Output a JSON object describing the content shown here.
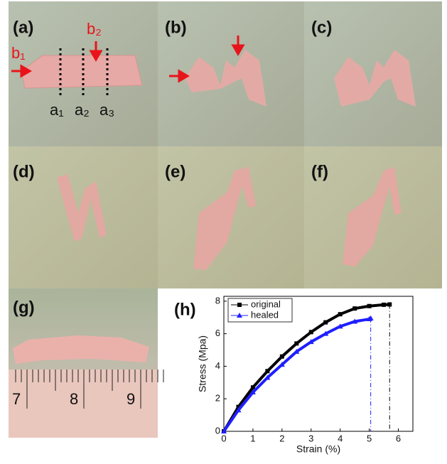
{
  "photos": [
    {
      "label": "(a)",
      "annotations": [
        "b₁",
        "b₂",
        "a₁",
        "a₂",
        "a₃"
      ]
    },
    {
      "label": "(b)"
    },
    {
      "label": "(c)"
    },
    {
      "label": "(d)"
    },
    {
      "label": "(e)"
    },
    {
      "label": "(f)"
    },
    {
      "label": "(g)",
      "ruler": [
        "7",
        "8",
        "9"
      ]
    }
  ],
  "chart_data": {
    "type": "line",
    "title": "(h)",
    "x_label": "Strain (%)",
    "y_label": "Stress (Mpa)",
    "xlim": [
      0,
      6.5
    ],
    "xticks": [
      0,
      1,
      2,
      3,
      4,
      5,
      6
    ],
    "ylim": [
      0,
      8.3
    ],
    "yticks": [
      0,
      2,
      4,
      6,
      8
    ],
    "legend": "upper left",
    "series": [
      {
        "name": "original",
        "color": "#000000",
        "marker": "square",
        "dashed_last_segment": true,
        "x": [
          0,
          0.5,
          1,
          1.5,
          2,
          2.5,
          3,
          3.5,
          4,
          4.5,
          5,
          5.5,
          5.7,
          5.7
        ],
        "values": [
          0,
          1.5,
          2.7,
          3.7,
          4.6,
          5.4,
          6.1,
          6.7,
          7.2,
          7.55,
          7.7,
          7.78,
          7.8,
          0
        ]
      },
      {
        "name": "healed",
        "color": "#1f1fff",
        "marker": "triangle",
        "dashed_last_segment": true,
        "x": [
          0,
          0.5,
          1,
          1.5,
          2,
          2.5,
          3,
          3.5,
          4,
          4.5,
          5,
          5.05,
          5.05
        ],
        "values": [
          0,
          1.3,
          2.4,
          3.3,
          4.1,
          4.9,
          5.5,
          6.0,
          6.45,
          6.75,
          6.9,
          6.95,
          0
        ]
      }
    ]
  }
}
